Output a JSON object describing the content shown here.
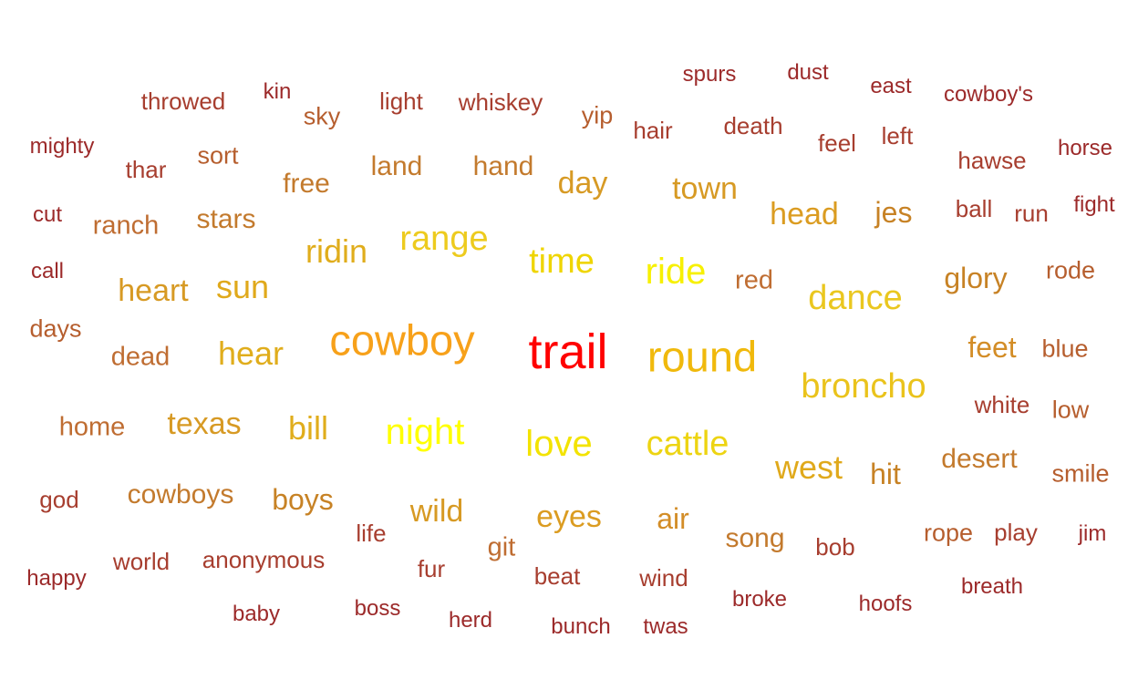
{
  "words": [
    {
      "text": "trail",
      "color": "#ff0000"
    },
    {
      "text": "cowboy",
      "color": "#f7a11a"
    },
    {
      "text": "round",
      "color": "#f0b90c"
    },
    {
      "text": "night",
      "color": "#ffff00"
    },
    {
      "text": "ride",
      "color": "#f7f000"
    },
    {
      "text": "love",
      "color": "#f3e300"
    },
    {
      "text": "time",
      "color": "#efd500"
    },
    {
      "text": "cattle",
      "color": "#edd412"
    },
    {
      "text": "range",
      "color": "#edcb1e"
    },
    {
      "text": "broncho",
      "color": "#eac31c"
    },
    {
      "text": "dance",
      "color": "#eac71f"
    },
    {
      "text": "ridin",
      "color": "#e0ad1c"
    },
    {
      "text": "bill",
      "color": "#e0ad1c"
    },
    {
      "text": "hear",
      "color": "#e0ad1c"
    },
    {
      "text": "sun",
      "color": "#e0a91b"
    },
    {
      "text": "west",
      "color": "#e0a91b"
    },
    {
      "text": "eyes",
      "color": "#db9c21"
    },
    {
      "text": "head",
      "color": "#db9c21"
    },
    {
      "text": "texas",
      "color": "#d79a24"
    },
    {
      "text": "heart",
      "color": "#d79a24"
    },
    {
      "text": "day",
      "color": "#d79a24"
    },
    {
      "text": "town",
      "color": "#d79a24"
    },
    {
      "text": "wild",
      "color": "#d79a24"
    },
    {
      "text": "air",
      "color": "#d38d27"
    },
    {
      "text": "feet",
      "color": "#d38d27"
    },
    {
      "text": "glory",
      "color": "#c78225"
    },
    {
      "text": "hit",
      "color": "#c78225"
    },
    {
      "text": "jes",
      "color": "#c78225"
    },
    {
      "text": "boys",
      "color": "#c78225"
    },
    {
      "text": "land",
      "color": "#c37a2d"
    },
    {
      "text": "hand",
      "color": "#c37a2d"
    },
    {
      "text": "stars",
      "color": "#c37a2d"
    },
    {
      "text": "cowboys",
      "color": "#c37a2d"
    },
    {
      "text": "desert",
      "color": "#c37a2d"
    },
    {
      "text": "free",
      "color": "#c37a2d"
    },
    {
      "text": "song",
      "color": "#c37a2d"
    },
    {
      "text": "dead",
      "color": "#bf6d32"
    },
    {
      "text": "ranch",
      "color": "#bf6d32"
    },
    {
      "text": "red",
      "color": "#bf6d32"
    },
    {
      "text": "home",
      "color": "#bf6d32"
    },
    {
      "text": "git",
      "color": "#bf6d32"
    },
    {
      "text": "days",
      "color": "#b65e2e"
    },
    {
      "text": "rope",
      "color": "#b65e2e"
    },
    {
      "text": "blue",
      "color": "#b65e2e"
    },
    {
      "text": "rode",
      "color": "#b65e2e"
    },
    {
      "text": "low",
      "color": "#b65e2e"
    },
    {
      "text": "yip",
      "color": "#b65e2e"
    },
    {
      "text": "sort",
      "color": "#b65e2e"
    },
    {
      "text": "smile",
      "color": "#b65e2e"
    },
    {
      "text": "sky",
      "color": "#b65e2e"
    },
    {
      "text": "death",
      "color": "#a73e2f"
    },
    {
      "text": "feel",
      "color": "#a73e2f"
    },
    {
      "text": "hawse",
      "color": "#a73e2f"
    },
    {
      "text": "ball",
      "color": "#a73e2f"
    },
    {
      "text": "run",
      "color": "#a73e2f"
    },
    {
      "text": "hair",
      "color": "#a73e2f"
    },
    {
      "text": "left",
      "color": "#a73e2f"
    },
    {
      "text": "thar",
      "color": "#a73e2f"
    },
    {
      "text": "whiskey",
      "color": "#a73e2f"
    },
    {
      "text": "light",
      "color": "#a73e2f"
    },
    {
      "text": "throwed",
      "color": "#a73e2f"
    },
    {
      "text": "anonymous",
      "color": "#a73e2f"
    },
    {
      "text": "world",
      "color": "#a73e2f"
    },
    {
      "text": "god",
      "color": "#a73e2f"
    },
    {
      "text": "life",
      "color": "#a73e2f"
    },
    {
      "text": "fur",
      "color": "#a73e2f"
    },
    {
      "text": "beat",
      "color": "#a73e2f"
    },
    {
      "text": "wind",
      "color": "#a73e2f"
    },
    {
      "text": "bob",
      "color": "#a73e2f"
    },
    {
      "text": "play",
      "color": "#a73e2f"
    },
    {
      "text": "white",
      "color": "#a73e2f"
    },
    {
      "text": "call",
      "color": "#9c2a2a"
    },
    {
      "text": "cut",
      "color": "#9c2a2a"
    },
    {
      "text": "mighty",
      "color": "#9c2a2a"
    },
    {
      "text": "kin",
      "color": "#9c2a2a"
    },
    {
      "text": "spurs",
      "color": "#9c2a2a"
    },
    {
      "text": "dust",
      "color": "#9c2a2a"
    },
    {
      "text": "east",
      "color": "#9c2a2a"
    },
    {
      "text": "cowboy's",
      "color": "#9c2a2a"
    },
    {
      "text": "horse",
      "color": "#9c2a2a"
    },
    {
      "text": "fight",
      "color": "#9c2a2a"
    },
    {
      "text": "jim",
      "color": "#9c2a2a"
    },
    {
      "text": "breath",
      "color": "#9c2a2a"
    },
    {
      "text": "hoofs",
      "color": "#9c2a2a"
    },
    {
      "text": "broke",
      "color": "#9c2a2a"
    },
    {
      "text": "twas",
      "color": "#9c2a2a"
    },
    {
      "text": "bunch",
      "color": "#9c2a2a"
    },
    {
      "text": "herd",
      "color": "#9c2a2a"
    },
    {
      "text": "boss",
      "color": "#9c2a2a"
    },
    {
      "text": "baby",
      "color": "#9c2a2a"
    },
    {
      "text": "happy",
      "color": "#9c2a2a"
    }
  ]
}
